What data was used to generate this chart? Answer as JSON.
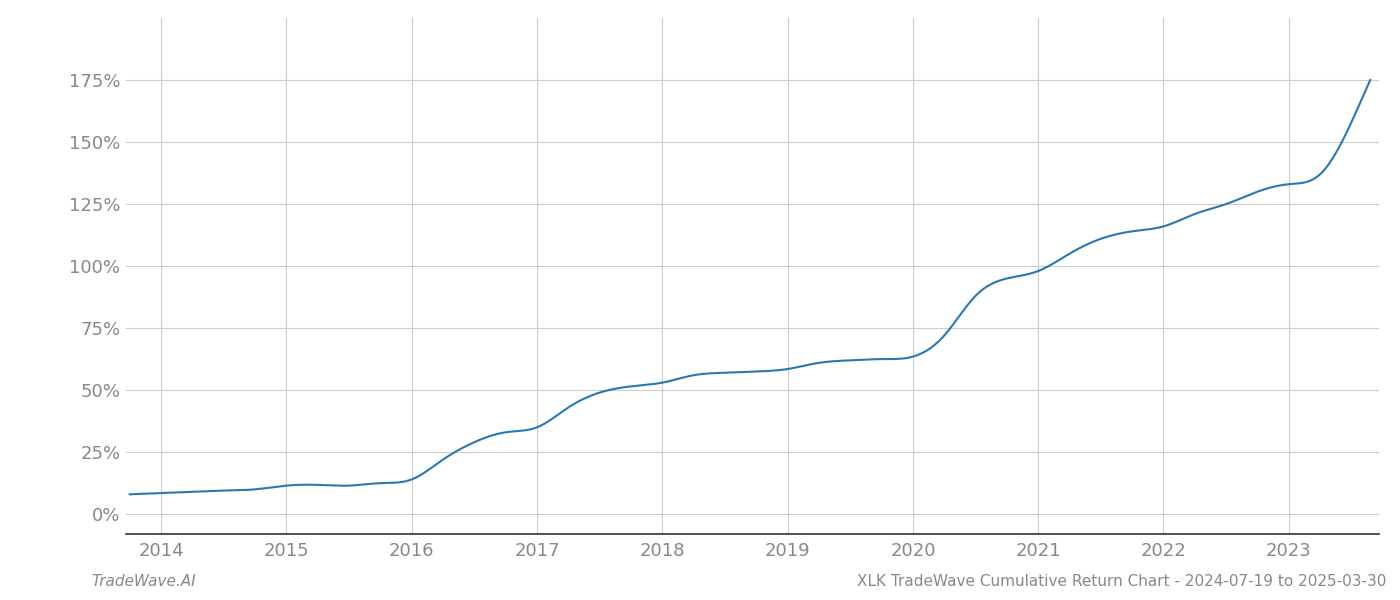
{
  "title": "XLK TradeWave Cumulative Return Chart - 2024-07-19 to 2025-03-30",
  "footnote_left": "TradeWave.AI",
  "line_color": "#2878b4",
  "background_color": "#ffffff",
  "grid_color": "#cccccc",
  "axis_color": "#333333",
  "tick_label_color": "#888888",
  "years": [
    2014,
    2015,
    2016,
    2017,
    2018,
    2019,
    2020,
    2021,
    2022,
    2023
  ],
  "yticks": [
    0,
    25,
    50,
    75,
    100,
    125,
    150,
    175
  ],
  "xlim_start": 2013.72,
  "xlim_end": 2023.72,
  "ylim_min": -8,
  "ylim_max": 200,
  "data_x": [
    2013.75,
    2014.0,
    2014.25,
    2014.5,
    2014.75,
    2015.0,
    2015.25,
    2015.5,
    2015.75,
    2016.0,
    2016.25,
    2016.5,
    2016.75,
    2017.0,
    2017.25,
    2017.5,
    2017.75,
    2018.0,
    2018.25,
    2018.5,
    2018.75,
    2019.0,
    2019.25,
    2019.5,
    2019.75,
    2020.0,
    2020.25,
    2020.5,
    2020.75,
    2021.0,
    2021.25,
    2021.5,
    2021.75,
    2022.0,
    2022.25,
    2022.5,
    2022.75,
    2023.0,
    2023.25,
    2023.5,
    2023.65
  ],
  "data_y": [
    8.0,
    8.5,
    9.0,
    9.5,
    10.0,
    11.5,
    11.8,
    11.5,
    12.5,
    14.0,
    22.0,
    29.0,
    33.0,
    35.0,
    43.0,
    49.0,
    51.5,
    53.0,
    56.0,
    57.0,
    57.5,
    58.5,
    61.0,
    62.0,
    62.5,
    63.5,
    72.0,
    88.0,
    95.0,
    98.0,
    105.0,
    111.0,
    114.0,
    116.0,
    121.0,
    125.0,
    130.0,
    133.0,
    137.0,
    158.0,
    175.0
  ]
}
